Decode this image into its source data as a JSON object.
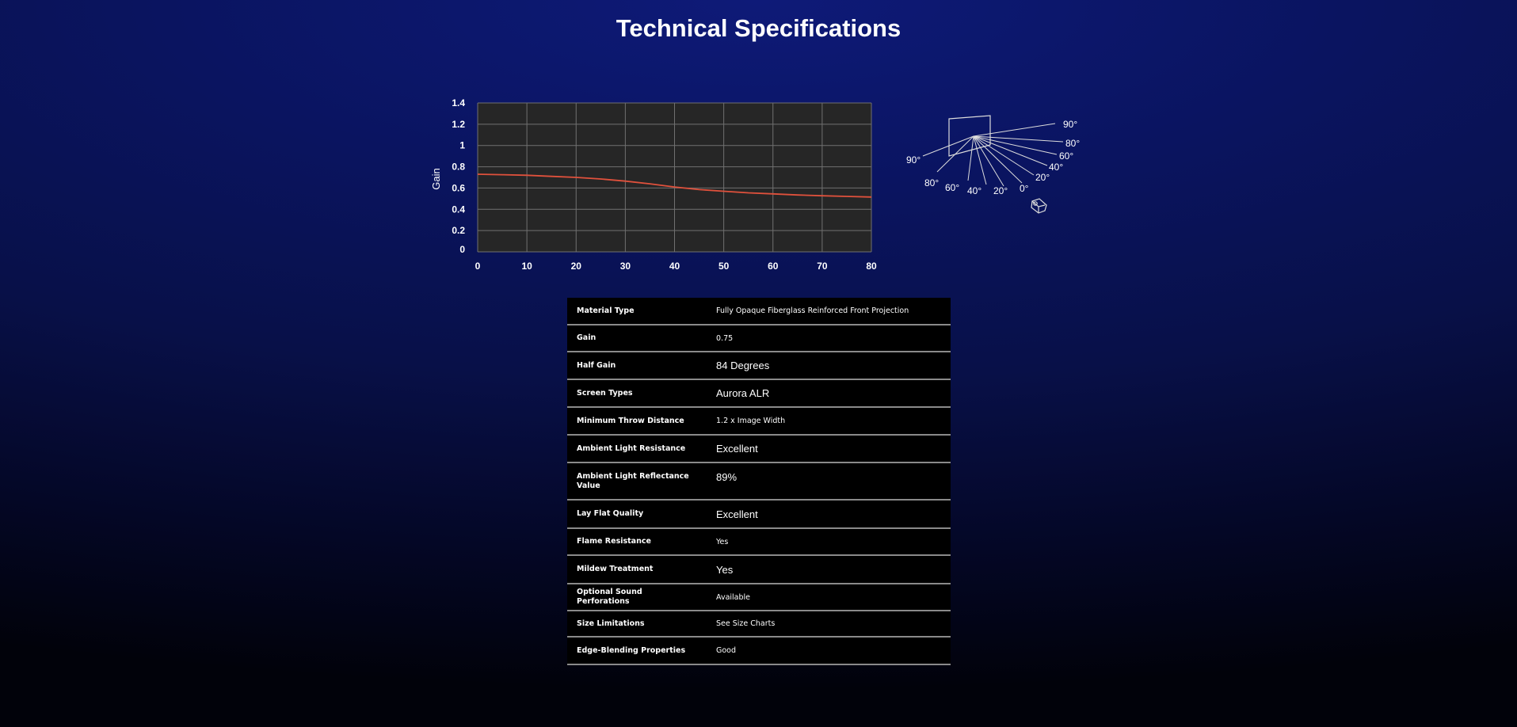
{
  "page": {
    "title": "Technical Specifications"
  },
  "chart_data": {
    "type": "line",
    "title": "",
    "xlabel": "",
    "ylabel": "Gain",
    "xlim": [
      0,
      80
    ],
    "ylim": [
      0,
      1.4
    ],
    "x_ticks": [
      "0",
      "10",
      "20",
      "30",
      "40",
      "50",
      "60",
      "70",
      "80"
    ],
    "y_ticks": [
      "1.4",
      "1.2",
      "1",
      "0.8",
      "0.6",
      "0.4",
      "0.2",
      "0"
    ],
    "grid": true,
    "series": [
      {
        "color": "#e0513c",
        "x": [
          0,
          5,
          10,
          15,
          20,
          25,
          30,
          35,
          40,
          45,
          50,
          55,
          60,
          65,
          70,
          75,
          80
        ],
        "y": [
          0.73,
          0.725,
          0.72,
          0.71,
          0.7,
          0.685,
          0.665,
          0.64,
          0.61,
          0.585,
          0.57,
          0.555,
          0.545,
          0.535,
          0.527,
          0.521,
          0.515
        ]
      }
    ]
  },
  "angle_diagram": {
    "right_labels": [
      "90°",
      "80°",
      "60°",
      "40°",
      "20°",
      "0°"
    ],
    "bottom_labels": [
      "90°",
      "80°",
      "60°",
      "40°",
      "20°"
    ],
    "projector_icon": "projector-icon"
  },
  "specs": [
    {
      "label": "Material Type",
      "value": "Fully Opaque Fiberglass Reinforced Front Projection",
      "style": "small"
    },
    {
      "label": "Gain",
      "value": "0.75",
      "style": "small"
    },
    {
      "label": "Half Gain",
      "value": "84 Degrees",
      "style": "large"
    },
    {
      "label": "Screen Types",
      "value": "Aurora ALR",
      "style": "large"
    },
    {
      "label": "Minimum Throw Distance",
      "value": "1.2 x Image Width",
      "style": "small"
    },
    {
      "label": "Ambient Light Resistance",
      "value": "Excellent",
      "style": "large"
    },
    {
      "label": "Ambient Light Reflectance Value",
      "value": "89%",
      "style": "large"
    },
    {
      "label": "Lay Flat Quality",
      "value": "Excellent",
      "style": "large"
    },
    {
      "label": "Flame Resistance",
      "value": "Yes",
      "style": "small"
    },
    {
      "label": "Mildew Treatment",
      "value": "Yes",
      "style": "large"
    },
    {
      "label": "Optional Sound Perforations",
      "value": "Available",
      "style": "small"
    },
    {
      "label": "Size Limitations",
      "value": "See Size Charts",
      "style": "small"
    },
    {
      "label": "Edge-Blending Properties",
      "value": "Good",
      "style": "small"
    }
  ],
  "colors": {
    "chart_bg": "#262626",
    "grid": "#707070",
    "line": "#e0513c",
    "table_bg": "#000000",
    "row_divider": "#8a8a8a"
  }
}
